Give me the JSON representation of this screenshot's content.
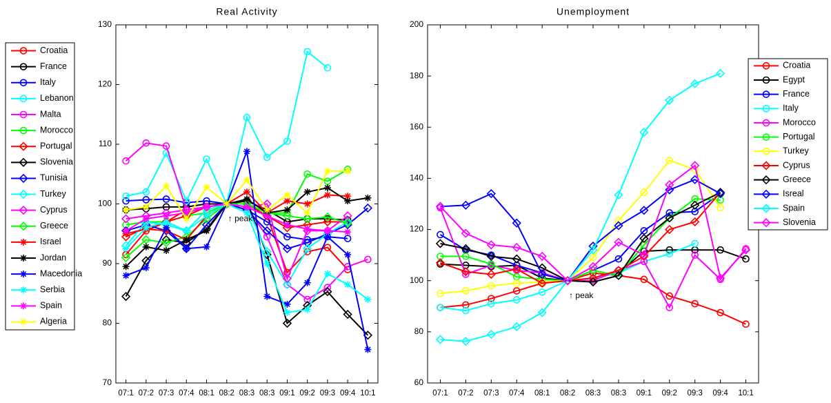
{
  "chart_data": [
    {
      "type": "line",
      "title": "Real Activity",
      "annotation": "↑ peak",
      "categories": [
        "07:1",
        "07:2",
        "07:3",
        "07:4",
        "08:1",
        "08:2",
        "08:3",
        "08:3",
        "09:1",
        "09:2",
        "09:3",
        "09:4",
        "10:1"
      ],
      "ylim": [
        70,
        130
      ],
      "yticks": [
        70,
        80,
        90,
        100,
        110,
        120,
        130
      ],
      "legend": "outside left",
      "series": [
        {
          "name": "Croatia",
          "color": "#ff0000",
          "marker": "o",
          "values": [
            91.5,
            95.5,
            97,
            99,
            99.5,
            100,
            100,
            98,
            88.5,
            92,
            92.7,
            89,
            null
          ]
        },
        {
          "name": "France",
          "color": "#000000",
          "marker": "o",
          "values": [
            99,
            99.2,
            99.5,
            99.5,
            100,
            100,
            100.5,
            99,
            97,
            97.5,
            97.5,
            97.3,
            null
          ]
        },
        {
          "name": "Italy",
          "color": "#0000ff",
          "marker": "o",
          "values": [
            100.5,
            100.7,
            100.8,
            100.2,
            100.5,
            100,
            99,
            97,
            94.5,
            94,
            94.5,
            94.2,
            null
          ]
        },
        {
          "name": "Lebanon",
          "color": "#00ffff",
          "marker": "o",
          "values": [
            101.3,
            102,
            108.5,
            100.5,
            107.5,
            100,
            114.5,
            107.8,
            110.5,
            125.5,
            122.8,
            null,
            null
          ]
        },
        {
          "name": "Malta",
          "color": "#ff00ff",
          "marker": "o",
          "values": [
            107.2,
            110.2,
            109.7,
            99,
            99.5,
            100,
            99.5,
            94.5,
            86.5,
            84,
            86,
            89.5,
            90.7
          ]
        },
        {
          "name": "Morocco",
          "color": "#00ff00",
          "marker": "o",
          "values": [
            96.5,
            97,
            97,
            98,
            98.5,
            100,
            100,
            98.5,
            98.5,
            105,
            103.8,
            105.8,
            null
          ]
        },
        {
          "name": "Portugal",
          "color": "#ff0000",
          "marker": "d",
          "values": [
            94.5,
            96,
            97,
            98,
            99.5,
            100,
            99.5,
            98,
            96,
            96.5,
            97,
            97,
            null
          ]
        },
        {
          "name": "Slovenia",
          "color": "#000000",
          "marker": "d",
          "values": [
            84.5,
            90.5,
            94,
            93.5,
            95.8,
            100,
            100.5,
            91.5,
            80,
            83,
            85.3,
            81.5,
            78
          ]
        },
        {
          "name": "Tunisia",
          "color": "#0000ff",
          "marker": "d",
          "values": [
            95.5,
            96.5,
            95.5,
            92.5,
            96.5,
            100,
            99,
            95.5,
            92.5,
            93.5,
            95,
            96.5,
            99.3
          ]
        },
        {
          "name": "Turkey",
          "color": "#00ffff",
          "marker": "d",
          "values": [
            93,
            97,
            96.5,
            95.5,
            99,
            100,
            99.5,
            92,
            86.5,
            92.5,
            95,
            97,
            null
          ]
        },
        {
          "name": "Cyprus",
          "color": "#ff00ff",
          "marker": "d",
          "values": [
            97.5,
            98,
            98.5,
            99,
            99.5,
            100,
            99.5,
            100,
            87.5,
            95.5,
            95.5,
            98,
            null
          ]
        },
        {
          "name": "Greece",
          "color": "#00ff00",
          "marker": "d",
          "values": [
            91,
            94,
            93.5,
            94.5,
            97.5,
            100,
            100,
            98.5,
            98,
            97.5,
            97.8,
            96.8,
            null
          ]
        },
        {
          "name": "Israel",
          "color": "#ff0000",
          "marker": "*",
          "values": [
            95,
            95.8,
            95.5,
            94,
            98,
            100,
            102,
            98.5,
            100.5,
            100,
            101.5,
            101.3,
            null
          ]
        },
        {
          "name": "Jordan",
          "color": "#000000",
          "marker": "*",
          "values": [
            89.5,
            92.8,
            92.2,
            94,
            95.5,
            100,
            100.8,
            98.5,
            99,
            102,
            102.7,
            100.5,
            101
          ]
        },
        {
          "name": "Macedonia",
          "color": "#0000ff",
          "marker": "*",
          "values": [
            88,
            89.3,
            96,
            92.5,
            92.8,
            100,
            108.8,
            84.5,
            83.2,
            86.8,
            94.5,
            91.5,
            75.6
          ]
        },
        {
          "name": "Serbia",
          "color": "#00ffff",
          "marker": "*",
          "values": [
            92.5,
            96,
            97,
            95.5,
            98,
            100,
            98.5,
            90,
            81.8,
            82.3,
            88.3,
            86.5,
            84
          ]
        },
        {
          "name": "Spain",
          "color": "#ff00ff",
          "marker": "*",
          "values": [
            95.5,
            97.5,
            98,
            98.5,
            99.5,
            100,
            99.5,
            98,
            96.5,
            95.8,
            95.5,
            95.3,
            null
          ]
        },
        {
          "name": "Algeria",
          "color": "#ffff00",
          "marker": "*",
          "values": [
            99,
            99.5,
            103,
            97.5,
            102.8,
            100,
            104,
            99,
            101.5,
            98.5,
            105.5,
            105.5,
            null
          ]
        }
      ]
    },
    {
      "type": "line",
      "title": "Unemployment",
      "annotation": "↑ peak",
      "categories": [
        "07:1",
        "07:2",
        "07:3",
        "07:4",
        "08:1",
        "08:2",
        "08:3",
        "08:3",
        "09:1",
        "09:2",
        "09:3",
        "09:4",
        "10:1"
      ],
      "ylim": [
        60,
        200
      ],
      "yticks": [
        60,
        80,
        100,
        120,
        140,
        160,
        180,
        200
      ],
      "legend": "upper right",
      "series": [
        {
          "name": "Croatia",
          "color": "#ff0000",
          "marker": "o",
          "values": [
            89.5,
            90.5,
            93,
            96,
            99,
            100,
            103,
            102,
            100.5,
            94,
            91,
            87.5,
            83
          ]
        },
        {
          "name": "Egypt",
          "color": "#000000",
          "marker": "o",
          "values": [
            106.5,
            106,
            105.5,
            106,
            101,
            100,
            101,
            103,
            111.5,
            112,
            112,
            112,
            108.5
          ]
        },
        {
          "name": "France",
          "color": "#0000ff",
          "marker": "o",
          "values": [
            118,
            112,
            110,
            106,
            103,
            100,
            104,
            108.5,
            119.5,
            126.5,
            127,
            134,
            null
          ]
        },
        {
          "name": "Italy",
          "color": "#00ffff",
          "marker": "o",
          "values": [
            89.5,
            88.3,
            91,
            92.5,
            95.5,
            100,
            101,
            103,
            107.5,
            110.5,
            114.5,
            null,
            null
          ]
        },
        {
          "name": "Morocco",
          "color": "#ff00ff",
          "marker": "o",
          "values": [
            128.5,
            102.5,
            106,
            104,
            103,
            100,
            100,
            104,
            107.5,
            89.5,
            110,
            100.5,
            112.5
          ]
        },
        {
          "name": "Portugal",
          "color": "#00ff00",
          "marker": "o",
          "values": [
            109.5,
            109.5,
            106.5,
            101.5,
            100.5,
            100,
            104,
            102,
            114,
            124.5,
            132,
            131.5,
            null
          ]
        },
        {
          "name": "Turkey",
          "color": "#ffff00",
          "marker": "o",
          "values": [
            95,
            96,
            98,
            99,
            99.5,
            100,
            109,
            123.5,
            134.5,
            147,
            143.5,
            128.5,
            null
          ]
        },
        {
          "name": "Cyprus",
          "color": "#ff0000",
          "marker": "d",
          "values": [
            107,
            103.5,
            102.5,
            104.5,
            99,
            100,
            101,
            104,
            109.5,
            120,
            123,
            134.5,
            null
          ]
        },
        {
          "name": "Greece",
          "color": "#000000",
          "marker": "d",
          "values": [
            114.5,
            112.5,
            109.5,
            108.5,
            105,
            100,
            99.5,
            102,
            116.5,
            124.5,
            129.5,
            134.5,
            null
          ]
        },
        {
          "name": "Isreal",
          "color": "#0000ff",
          "marker": "d",
          "values": [
            129,
            129.5,
            134,
            122.5,
            102.5,
            100,
            113.5,
            121.5,
            127.5,
            135.5,
            139.5,
            134,
            null
          ]
        },
        {
          "name": "Spain",
          "color": "#00ffff",
          "marker": "d",
          "values": [
            77,
            76.3,
            79,
            82,
            87.5,
            100,
            112,
            133.5,
            158,
            170.5,
            177,
            181,
            null
          ]
        },
        {
          "name": "Slovenia",
          "color": "#ff00ff",
          "marker": "d",
          "values": [
            129,
            118.5,
            114,
            113,
            109.5,
            100,
            105.5,
            115,
            110,
            137.5,
            145,
            101,
            112
          ]
        }
      ]
    }
  ]
}
